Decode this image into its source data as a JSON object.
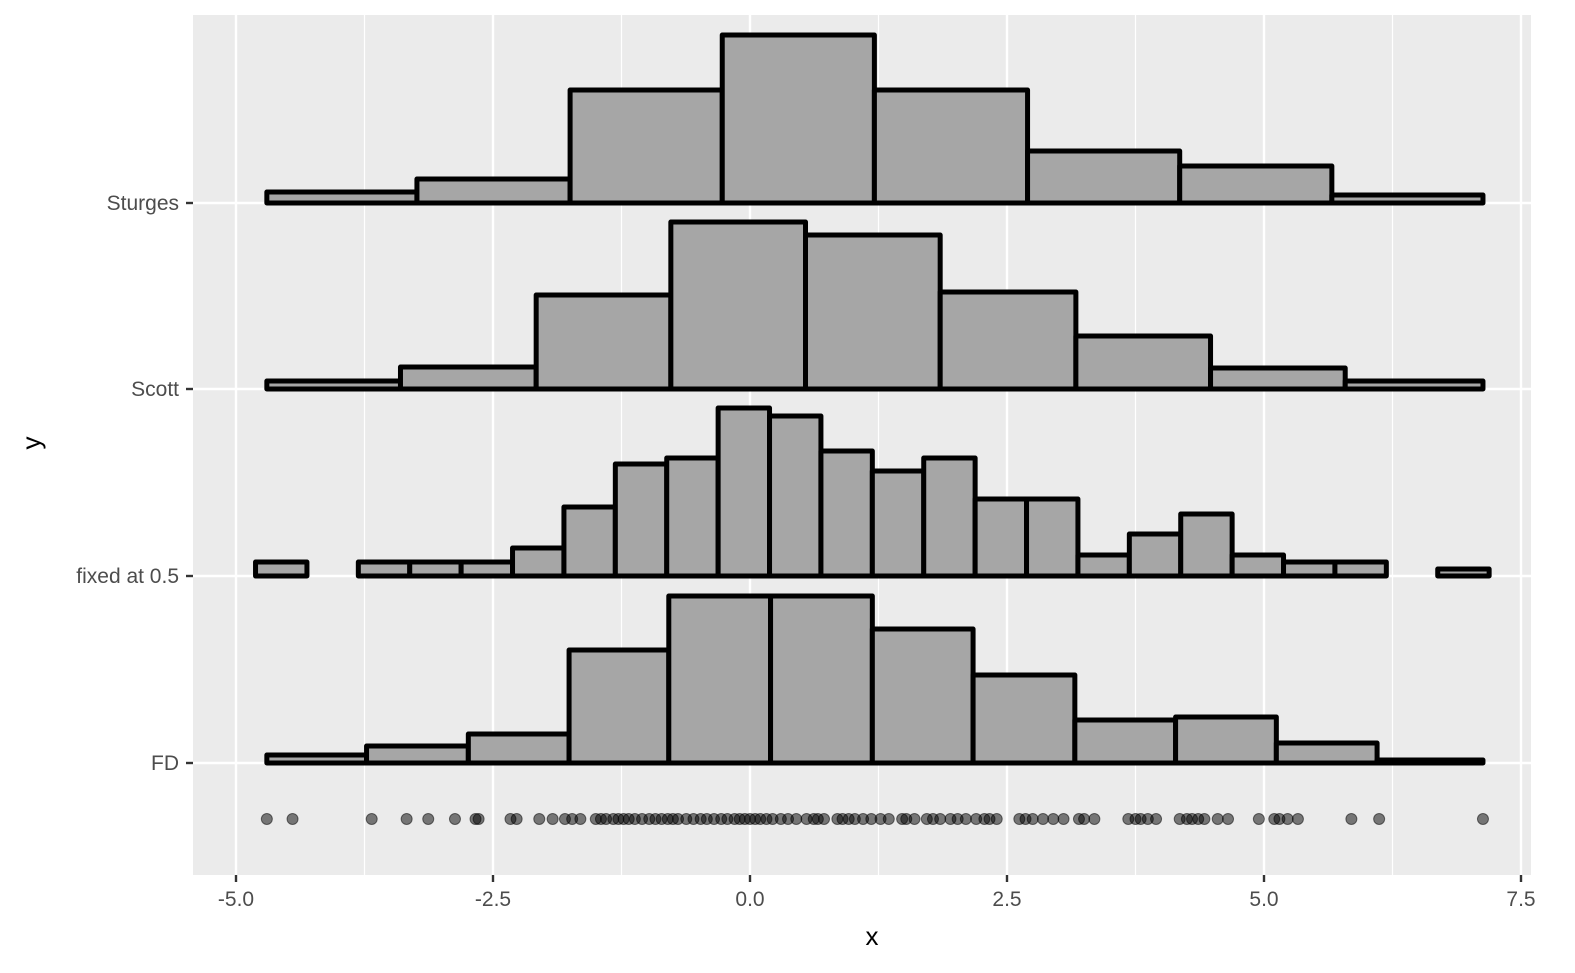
{
  "chart_data": {
    "type": "histogram",
    "title": "",
    "xlabel": "x",
    "ylabel": "y",
    "xlim": [
      -5.8,
      7.7
    ],
    "x_ticks": [
      -5.0,
      -2.5,
      0.0,
      2.5,
      5.0,
      7.5
    ],
    "x_tick_labels": [
      "-5.0",
      "-2.5",
      "0.0",
      "2.5",
      "5.0",
      "7.5"
    ],
    "y_categories": [
      "Sturges",
      "Scott",
      "fixed at 0.5",
      "FD"
    ],
    "grid": true,
    "legend": null,
    "colors": {
      "panel_background": "#ebebeb",
      "gridline": "#ffffff",
      "bar_fill": "#a6a6a6",
      "bar_outline": "#000000",
      "point_fill": "#000000",
      "point_alpha": 0.5,
      "tick_label": "#4d4d4d",
      "axis_title": "#000000"
    },
    "note": "Ridge-style histograms stacked by binning rule; bar heights are relative (pixel units above each baseline). Bottom row shows raw data points.",
    "series": [
      {
        "name": "Sturges",
        "bin_edges": [
          -4.7,
          -3.24,
          -1.75,
          -0.27,
          1.21,
          2.7,
          4.18,
          5.66,
          7.13
        ],
        "heights": [
          11,
          24,
          113,
          168,
          113,
          52,
          37,
          8
        ]
      },
      {
        "name": "Scott",
        "bin_edges": [
          -4.7,
          -3.4,
          -2.08,
          -0.77,
          0.54,
          1.85,
          3.17,
          4.48,
          5.79,
          7.13
        ],
        "heights": [
          8,
          22,
          94,
          167,
          154,
          97,
          53,
          21,
          8
        ]
      },
      {
        "name": "fixed at 0.5",
        "bin_edges": [
          -4.81,
          -4.31,
          -3.81,
          -3.31,
          -2.81,
          -2.31,
          -1.81,
          -1.31,
          -0.81,
          -0.31,
          0.19,
          0.69,
          1.19,
          1.69,
          2.19,
          2.69,
          3.19,
          3.69,
          4.19,
          4.69,
          5.19,
          5.69,
          6.19,
          6.69,
          7.19
        ],
        "heights": [
          14,
          0,
          14,
          14,
          14,
          28,
          69,
          112,
          118,
          168,
          160,
          125,
          105,
          118,
          77,
          77,
          21,
          42,
          62,
          21,
          14,
          14,
          0,
          7
        ]
      },
      {
        "name": "FD",
        "bin_edges": [
          -4.7,
          -3.73,
          -2.74,
          -1.76,
          -0.79,
          0.2,
          1.19,
          2.17,
          3.16,
          4.14,
          5.12,
          6.1,
          7.13
        ],
        "heights": [
          8,
          17,
          29,
          113,
          167,
          167,
          134,
          88,
          43,
          46,
          20,
          3
        ]
      }
    ],
    "points": {
      "row_label": "",
      "x": [
        -4.7,
        -4.45,
        -3.68,
        -3.34,
        -3.13,
        -2.87,
        -2.67,
        -2.64,
        -2.33,
        -2.27,
        -2.05,
        -1.92,
        -1.8,
        -1.73,
        -1.65,
        -1.5,
        -1.45,
        -1.4,
        -1.33,
        -1.28,
        -1.23,
        -1.18,
        -1.12,
        -1.05,
        -0.98,
        -0.92,
        -0.86,
        -0.8,
        -0.75,
        -0.7,
        -0.62,
        -0.55,
        -0.48,
        -0.42,
        -0.35,
        -0.28,
        -0.22,
        -0.15,
        -0.1,
        -0.05,
        0.0,
        0.05,
        0.1,
        0.16,
        0.22,
        0.3,
        0.37,
        0.45,
        0.55,
        0.62,
        0.66,
        0.72,
        0.85,
        0.9,
        0.96,
        1.02,
        1.1,
        1.18,
        1.27,
        1.35,
        1.48,
        1.52,
        1.6,
        1.72,
        1.78,
        1.85,
        1.95,
        2.02,
        2.1,
        2.2,
        2.28,
        2.33,
        2.4,
        2.62,
        2.68,
        2.75,
        2.85,
        2.95,
        3.05,
        3.2,
        3.25,
        3.35,
        3.68,
        3.75,
        3.8,
        3.87,
        3.95,
        4.18,
        4.25,
        4.3,
        4.36,
        4.42,
        4.55,
        4.65,
        4.95,
        5.1,
        5.15,
        5.23,
        5.33,
        5.85,
        6.12,
        7.13
      ]
    }
  }
}
